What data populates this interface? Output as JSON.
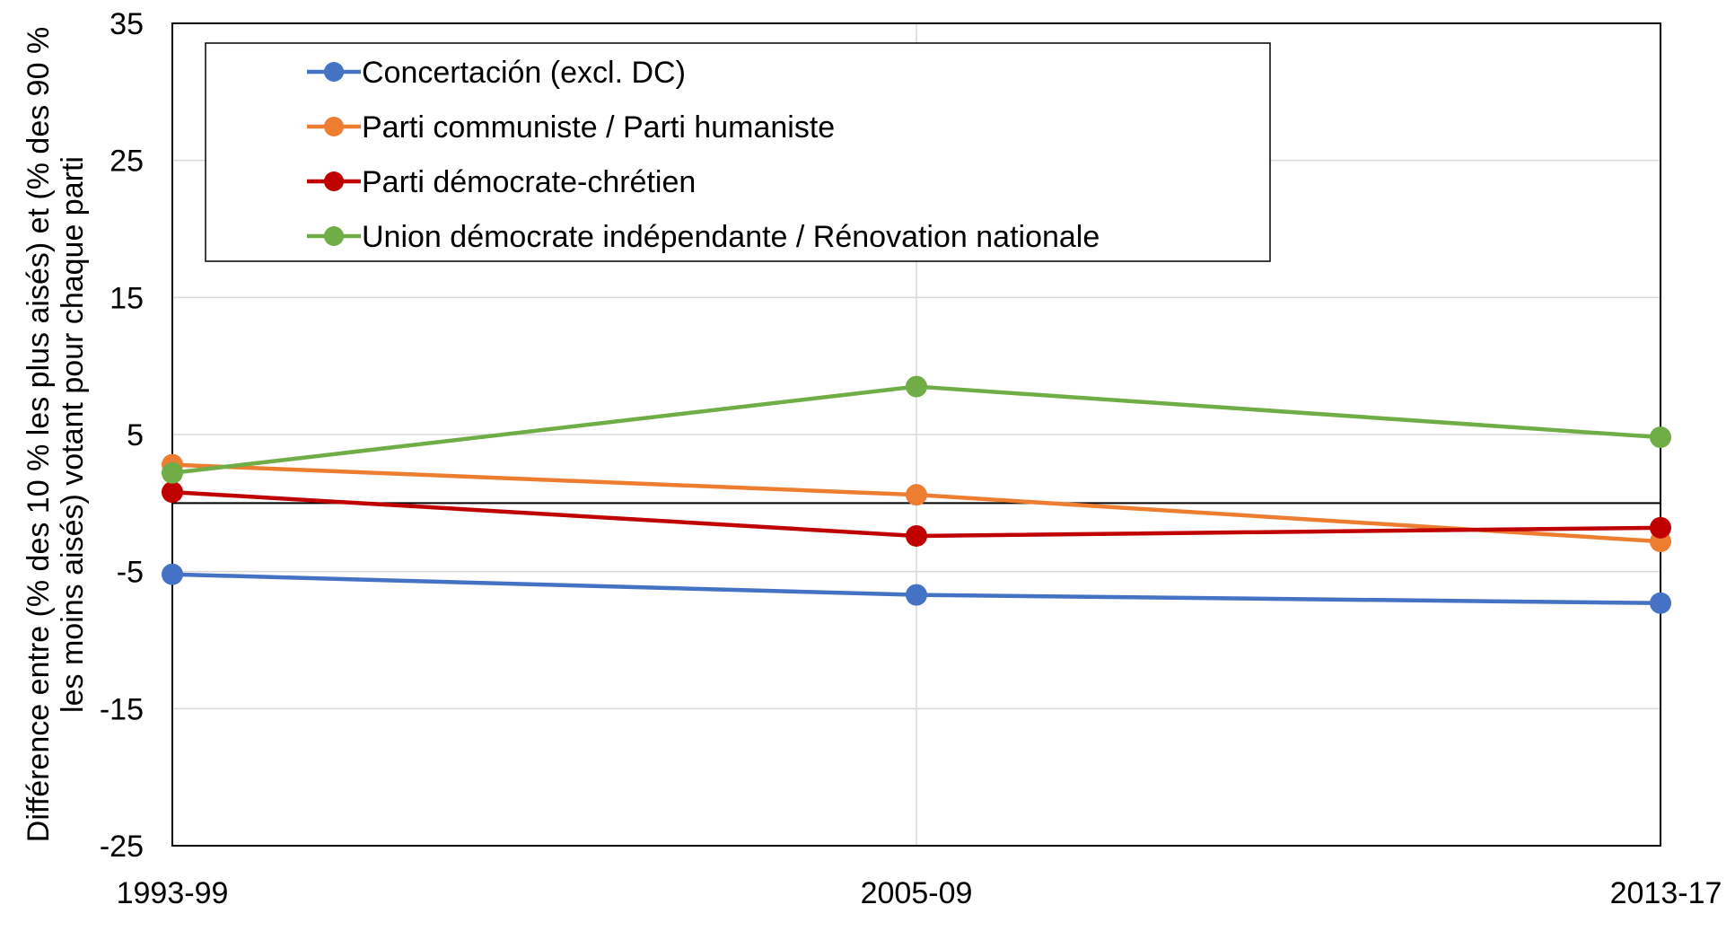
{
  "chart_data": {
    "type": "line",
    "title": "",
    "xlabel": "",
    "ylabel_line1": "Différence entre (% des 10 % les plus aisés) et (% des 90 %",
    "ylabel_line2": "les moins aisés) votant pour chaque parti",
    "categories": [
      "1993-99",
      "2005-09",
      "2013-17"
    ],
    "ylim": [
      -25,
      35
    ],
    "yticks": [
      -25,
      -15,
      -5,
      5,
      15,
      25,
      35
    ],
    "grid": true,
    "zero_line": true,
    "legend_position": "top-left",
    "series": [
      {
        "name": "Concertación (excl. DC)",
        "color": "#4472C4",
        "values": [
          -5.2,
          -6.7,
          -7.3
        ]
      },
      {
        "name": "Parti communiste / Parti humaniste",
        "color": "#ED7D31",
        "values": [
          2.8,
          0.6,
          -2.8
        ]
      },
      {
        "name": "Parti démocrate-chrétien",
        "color": "#C00000",
        "values": [
          0.8,
          -2.4,
          -1.8
        ]
      },
      {
        "name": "Union démocrate indépendante / Rénovation nationale",
        "color": "#70AD47",
        "values": [
          2.2,
          8.5,
          4.8
        ]
      }
    ]
  }
}
